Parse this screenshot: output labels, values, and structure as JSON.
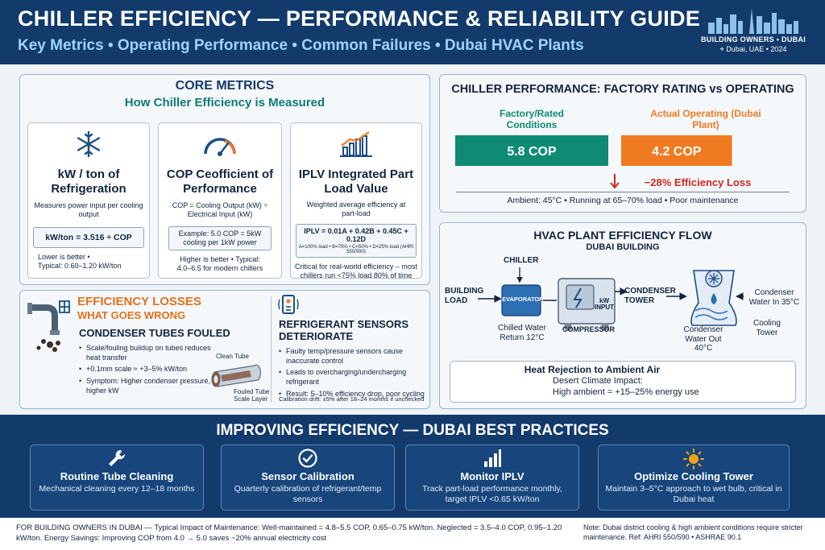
{
  "header": {
    "title": "CHILLER EFFICIENCY — PERFORMANCE & RELIABILITY GUIDE",
    "subtitle": "Key Metrics • Operating Performance • Common Failures • Dubai HVAC Plants",
    "brand_line1": "BUILDING OWNERS • DUBAI",
    "brand_line2": "Dubai, UAE • 2024"
  },
  "core_metrics": {
    "title": "CORE METRICS",
    "subtitle": "How Chiller Efficiency is Measured",
    "cards": [
      {
        "icon": "snowflake-icon",
        "title": "kW / ton of Refrigeration",
        "desc": "Measures power input per cooling output",
        "formula": "kW/ton = 3.516 ÷ COP",
        "note1": "Lower is better •",
        "note2": "Typical: 0.60–1.20 kW/ton"
      },
      {
        "icon": "gauge-icon",
        "title_main": "COP",
        "title_rest": " Ceofficient of Performance",
        "desc": "COP = Cooling Output (kW) ÷ Electrical Input (kW)",
        "formula": "Example: 5.0 COP = 5kW cooling per 1kW power",
        "note1": "Higher is better •  Typical:",
        "note2": "4.0–6.5 for modern chillers"
      },
      {
        "icon": "bar-chart-icon",
        "title": "IPLV Integrated Part Load Value",
        "desc": "Weighted average efficiency at part-load",
        "formula": "IPLV = 0.01A + 0.42B + 0.45C + 0.12D",
        "formula_small": "A=100% load • B=75% • C=50% • D=25% load (AHRI 550/590)",
        "note1": "Critical for real-world efficiency – most",
        "note2": "chillers run <75% load 80% of time"
      }
    ]
  },
  "efficiency_losses": {
    "title": "EFFICIENCY LOSSES",
    "subtitle": "WHAT GOES WRONG",
    "condenser": {
      "title": "CONDENSER TUBES FOULED",
      "bullets": [
        "Scale/fouling buildup on tubes reduces heat transfer",
        "+0.1mm scale ≈ +3–5% kW/ton",
        "Symptom: Higher condenser pressure, higher kW"
      ],
      "label_clean": "Clean Tube",
      "label_fouled": "Fouled Tube Scale Layer"
    },
    "sensors": {
      "title": "REFRIGERANT SENSORS DETERIORATE",
      "bullets": [
        "Faulty temp/pressure sensors cause inaccurate control",
        "Leads to overcharging/undercharging refrigerant",
        "Result: 5–10% efficiency drop, poor cycling"
      ],
      "drift": "Calibration drift: ±5% after 18–24 months if unchecked"
    }
  },
  "performance": {
    "title": "CHILLER PERFORMANCE: FACTORY RATING vs OPERATING",
    "rated_label": "Factory/Rated Conditions",
    "actual_label": "Actual Operating (Dubai Plant)",
    "loss": "−28% Efficiency Loss",
    "conditions": "Ambient: 45°C • Running at 65–70% load • Poor maintenance",
    "colors": {
      "rated": "#0f8a73",
      "actual": "#ef7a22",
      "loss": "#d0281f"
    }
  },
  "chart_data": {
    "type": "bar",
    "categories": [
      "Factory/Rated Conditions",
      "Actual Operating (Dubai Plant)"
    ],
    "values": [
      5.8,
      4.2
    ],
    "value_labels": [
      "5.8 COP",
      "4.2 COP"
    ],
    "title": "CHILLER PERFORMANCE: FACTORY RATING vs OPERATING",
    "xlabel": "",
    "ylabel": ""
  },
  "flow": {
    "title": "HVAC PLANT EFFICIENCY FLOW",
    "subtitle": "DUBAI BUILDING",
    "chiller": "CHILLER",
    "building_load": "BUILDING LOAD",
    "evaporator": "EVAPORATOR",
    "kw_input": "kW INPUT",
    "compressor": "COMPRESSOR",
    "chilled_return": "Chilled Water Return 12°C",
    "condenser_tower": "CONDENSER TOWER",
    "condenser_out": "Condenser Water Out 40°C",
    "condenser_in": "Condenser Water In 35°C",
    "cooling_tower": "Cooling Tower",
    "heat_title": "Heat Rejection to Ambient Air",
    "heat_line1": "Desert Climate Impact:",
    "heat_line2": "High ambient = +15–25% energy use"
  },
  "improving": {
    "title": "IMPROVING EFFICIENCY — DUBAI BEST PRACTICES",
    "items": [
      {
        "icon": "wrench-icon",
        "title": "Routine Tube Cleaning",
        "desc": "Mechanical cleaning every 12–18 months"
      },
      {
        "icon": "checkmark-icon",
        "title": "Sensor Calibration",
        "desc": "Quarterly calibration of refrigerant/temp sensors"
      },
      {
        "icon": "signal-bars-icon",
        "title": "Monitor IPLV",
        "desc": "Track part-load performance monthly, target IPLV <0.65 kW/ton"
      },
      {
        "icon": "sun-icon",
        "title": "Optimize Cooling Tower",
        "desc": "Maintain 3–5°C approach to wet bulb, critical in Dubai heat"
      }
    ]
  },
  "footer": {
    "left": "FOR BUILDING OWNERS IN DUBAI — Typical Impact of Maintenance: Well-maintained = 4.8–5.5 COP, 0.65–0.75 kW/ton. Neglected = 3.5–4.0 COP, 0.95–1.20 kW/ton. Energy Savings: Improving COP from 4.0 → 5.0 saves ~20% annual electricity cost",
    "right": "Note: Dubai district cooling & high ambient conditions require stricter maintenance. Ref: AHRI 550/590 • ASHRAE 90.1"
  }
}
